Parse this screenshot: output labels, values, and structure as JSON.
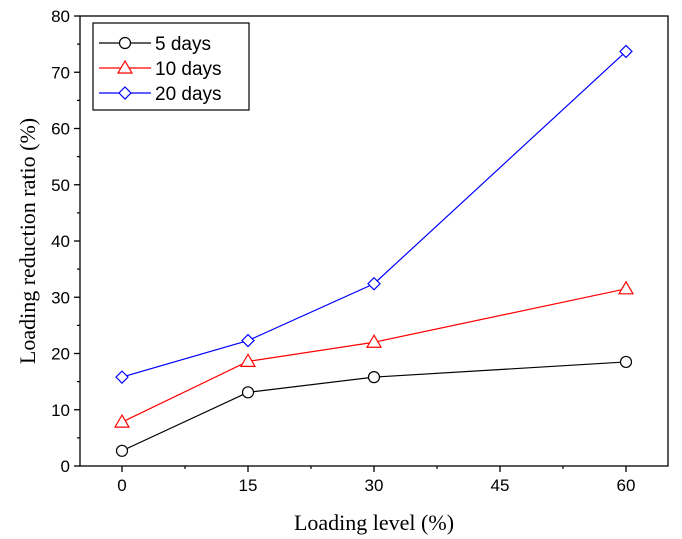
{
  "chart_data": {
    "type": "line",
    "title": "",
    "xlabel": "Loading level (%)",
    "ylabel": "Loading reduction ratio (%)",
    "xlim": [
      -5,
      65
    ],
    "ylim": [
      0,
      80
    ],
    "xticks": [
      0,
      15,
      30,
      45,
      60
    ],
    "yticks": [
      0,
      10,
      20,
      30,
      40,
      50,
      60,
      70,
      80
    ],
    "grid": false,
    "legend_position": "top-left",
    "series": [
      {
        "name": "5 days",
        "color": "#000000",
        "marker": "circle",
        "x": [
          0,
          15,
          30,
          60
        ],
        "y": [
          2.7,
          13.1,
          15.8,
          18.5
        ]
      },
      {
        "name": "10 days",
        "color": "#ff0000",
        "marker": "triangle",
        "x": [
          0,
          15,
          30,
          60
        ],
        "y": [
          7.8,
          18.6,
          22.0,
          31.5
        ]
      },
      {
        "name": "20 days",
        "color": "#0000ff",
        "marker": "diamond",
        "x": [
          0,
          15,
          30,
          60
        ],
        "y": [
          15.8,
          22.3,
          32.4,
          73.7
        ]
      }
    ]
  }
}
